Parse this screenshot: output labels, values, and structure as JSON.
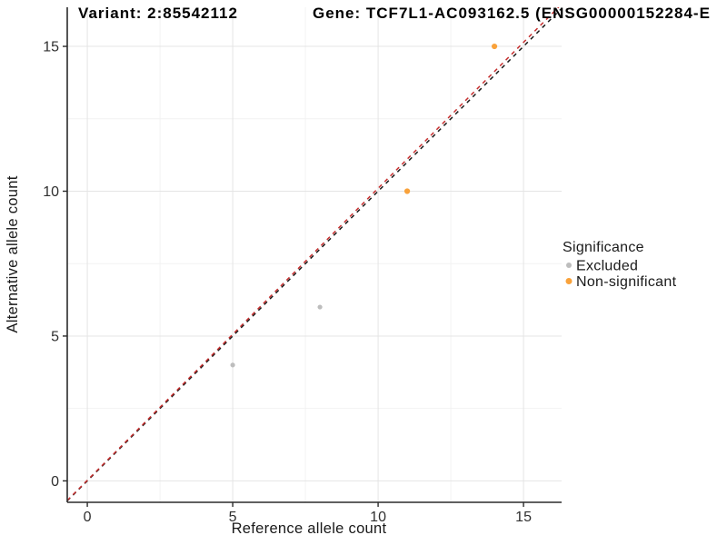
{
  "page": {
    "background": "#FFFFFF"
  },
  "chart_data": {
    "type": "scatter",
    "title_left": "Variant: 2:85542112",
    "title_right": "Gene: TCF7L1-AC093162.5 (ENSG00000152284-E",
    "xlabel": "Reference allele count",
    "ylabel": "Alternative allele count",
    "axes": {
      "xlim": [
        -0.69,
        16.31
      ],
      "ylim": [
        -0.74,
        16.35
      ],
      "ticks": [
        0,
        5,
        10,
        15
      ],
      "minor_ticks": [
        2.5,
        7.5,
        12.5
      ],
      "grid": true
    },
    "series": [
      {
        "name": "Excluded",
        "color": "#BDBDBD",
        "size": 2.6,
        "points": [
          [
            5,
            4
          ],
          [
            8,
            6
          ]
        ]
      },
      {
        "name": "Non-significant",
        "color": "#F9A23B",
        "size": 3.1,
        "points": [
          [
            11,
            10
          ],
          [
            14,
            15
          ]
        ]
      }
    ],
    "lines": [
      {
        "name": "identity-line",
        "slope": 1.0,
        "intercept": 0,
        "color": "#1A1A1A",
        "dash": "4.5 4.5",
        "width": 1.5
      },
      {
        "name": "expected-ratio-line",
        "slope": 1.008,
        "intercept": 0.02,
        "color": "#C62F2F",
        "dash": "4.5 4.5",
        "width": 1.5
      }
    ],
    "legend": {
      "title": "Significance",
      "position": "right",
      "items": [
        "Excluded",
        "Non-significant"
      ]
    },
    "style": {
      "major_grid": "#E4E4E4",
      "minor_grid": "#F2F2F2",
      "axis_color": "#2B2B2B",
      "tick_color": "#2B2B2B",
      "tick_label_color": "#303030"
    }
  }
}
